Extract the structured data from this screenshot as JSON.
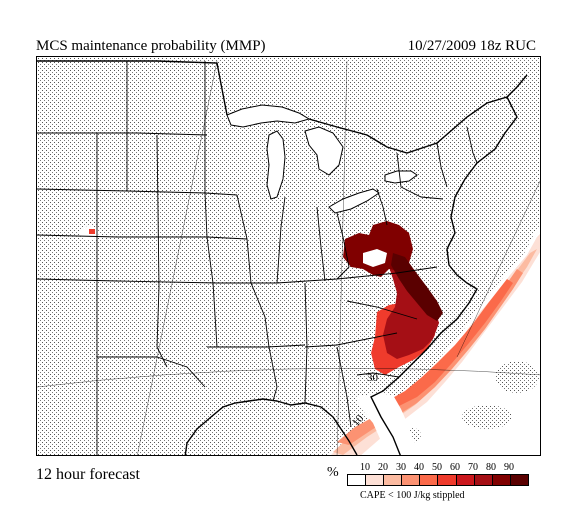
{
  "header": {
    "title": "MCS maintenance probability (MMP)",
    "run": "10/27/2009  18z  RUC"
  },
  "footer": {
    "forecast": "12 hour forecast",
    "percent_symbol": "%",
    "stipple_note": "CAPE < 100 J/kg stippled"
  },
  "legend": {
    "ticks": [
      "10",
      "20",
      "30",
      "40",
      "50",
      "60",
      "70",
      "80",
      "90"
    ],
    "colors": [
      "#ffffff",
      "#fde0d6",
      "#fcbba1",
      "#fc9272",
      "#fb6a4a",
      "#ef3b2c",
      "#cb181d",
      "#a50f15",
      "#800000",
      "#5a0000"
    ]
  },
  "contour_labels": {
    "thirty": "30",
    "ten": "10"
  }
}
